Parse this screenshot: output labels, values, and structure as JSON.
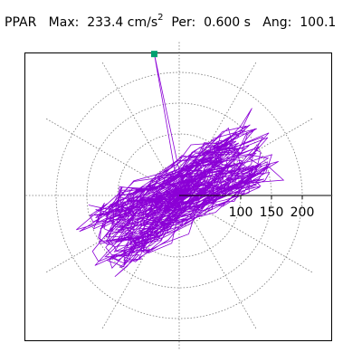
{
  "header": {
    "station": "PPAR",
    "max_label": "Max:",
    "max_value": "233.4 cm/s",
    "max_exponent": "2",
    "period_label": "Per:",
    "period_value": "0.600 s",
    "angle_label": "Ang:",
    "angle_value": "100.1"
  },
  "chart_data": {
    "type": "polar-orbit",
    "title": "",
    "unit": "cm/s2",
    "radial_ticks": [
      100,
      150,
      200
    ],
    "radial_rings": [
      50,
      100,
      150,
      200
    ],
    "radial_max": 250,
    "spoke_step_deg": 30,
    "max_amplitude": 233.4,
    "period_s": 0.6,
    "angle_deg": 100.1,
    "peak_marker": {
      "x": -40.5,
      "y": 229.9
    },
    "colors": {
      "trace": "#8b00d6",
      "grid": "#777777",
      "peak": "#00a070",
      "axis": "#000000"
    }
  }
}
